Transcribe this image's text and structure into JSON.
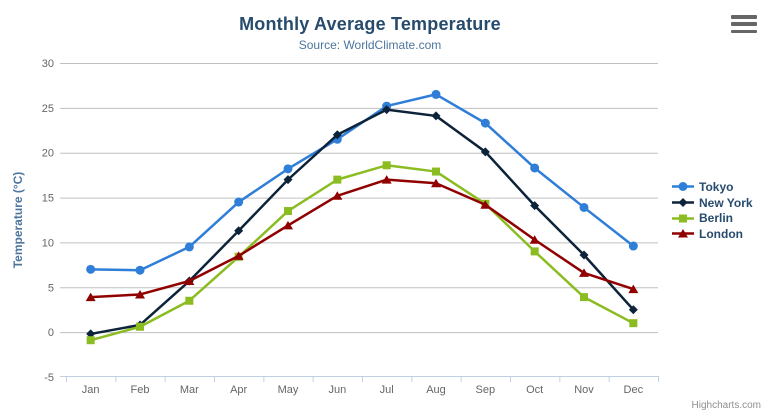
{
  "chart_data": {
    "type": "line",
    "title": "Monthly Average Temperature",
    "subtitle": "Source: WorldClimate.com",
    "categories": [
      "Jan",
      "Feb",
      "Mar",
      "Apr",
      "May",
      "Jun",
      "Jul",
      "Aug",
      "Sep",
      "Oct",
      "Nov",
      "Dec"
    ],
    "series": [
      {
        "name": "Tokyo",
        "color": "#2f7ed8",
        "marker": "circle",
        "values": [
          7.0,
          6.9,
          9.5,
          14.5,
          18.2,
          21.5,
          25.2,
          26.5,
          23.3,
          18.3,
          13.9,
          9.6
        ]
      },
      {
        "name": "New York",
        "color": "#0d233a",
        "marker": "diamond",
        "values": [
          -0.2,
          0.8,
          5.7,
          11.3,
          17.0,
          22.0,
          24.8,
          24.1,
          20.1,
          14.1,
          8.6,
          2.5
        ]
      },
      {
        "name": "Berlin",
        "color": "#8bbc21",
        "marker": "square",
        "values": [
          -0.9,
          0.6,
          3.5,
          8.4,
          13.5,
          17.0,
          18.6,
          17.9,
          14.3,
          9.0,
          3.9,
          1.0
        ]
      },
      {
        "name": "London",
        "color": "#910000",
        "marker": "triangle",
        "values": [
          3.9,
          4.2,
          5.7,
          8.5,
          11.9,
          15.2,
          17.0,
          16.6,
          14.2,
          10.3,
          6.6,
          4.8
        ]
      }
    ],
    "xlabel": "",
    "ylabel": "Temperature (°C)",
    "ylim": [
      -5,
      30
    ],
    "yticks": [
      -5,
      0,
      5,
      10,
      15,
      20,
      25,
      30
    ],
    "grid": true,
    "legend_position": "right",
    "style": {
      "title_color": "#274b6d",
      "subtitle_color": "#4d759e",
      "axis_title_color": "#4d759e",
      "tick_label_color": "#666666",
      "grid_color": "#c0c0c0",
      "axis_line_color": "#c0d0e0",
      "legend_text_color": "#274b6d",
      "credits_color": "#909090"
    }
  },
  "icons": {
    "export_menu": "hamburger-menu-icon"
  },
  "credits": {
    "label": "Highcharts.com"
  }
}
